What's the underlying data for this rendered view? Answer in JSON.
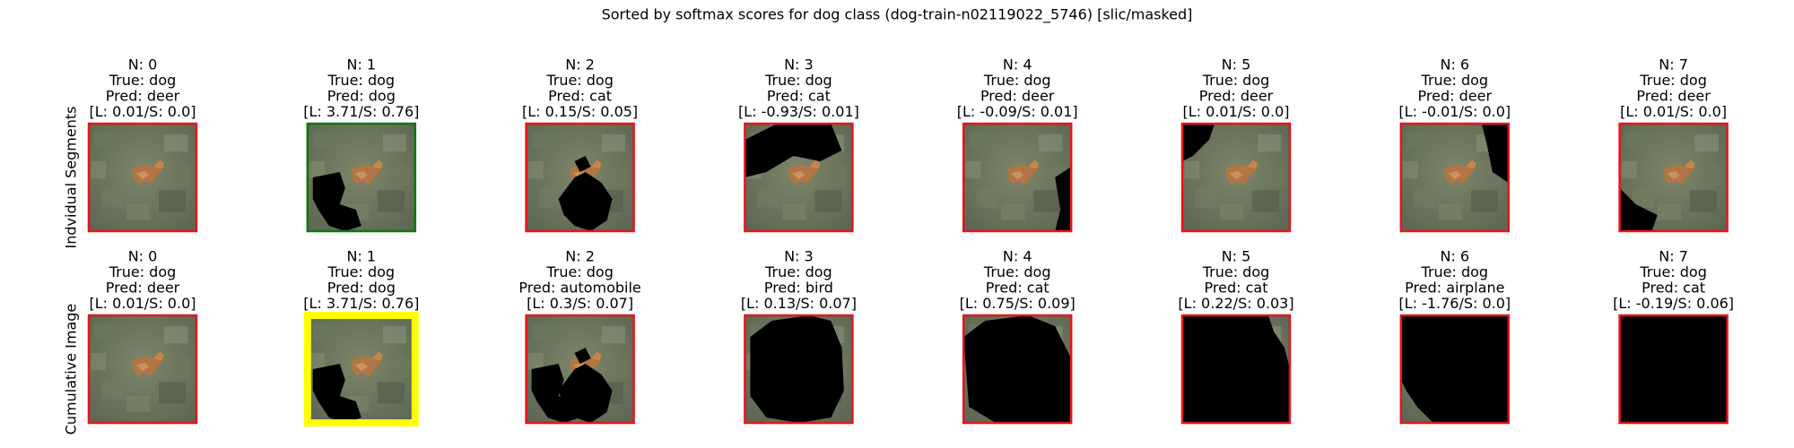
{
  "title": "Sorted by softmax scores for dog class (dog-train-n02119022_5746) [slic/masked]",
  "rows": [
    {
      "label": "Indvidual Segments",
      "panels": [
        {
          "n": "N: 0",
          "true": "True: dog",
          "pred": "Pred: deer",
          "score": "[L: 0.01/S: 0.0]",
          "border": "#e8141c"
        },
        {
          "n": "N: 1",
          "true": "True: dog",
          "pred": "Pred: dog",
          "score": "[L: 3.71/S: 0.76]",
          "border": "#0a7a0a"
        },
        {
          "n": "N: 2",
          "true": "True: dog",
          "pred": "Pred: cat",
          "score": "[L: 0.15/S: 0.05]",
          "border": "#e8141c"
        },
        {
          "n": "N: 3",
          "true": "True: dog",
          "pred": "Pred: cat",
          "score": "[L: -0.93/S: 0.01]",
          "border": "#e8141c"
        },
        {
          "n": "N: 4",
          "true": "True: dog",
          "pred": "Pred: deer",
          "score": "[L: -0.09/S: 0.01]",
          "border": "#e8141c"
        },
        {
          "n": "N: 5",
          "true": "True: dog",
          "pred": "Pred: deer",
          "score": "[L: 0.01/S: 0.0]",
          "border": "#e8141c"
        },
        {
          "n": "N: 6",
          "true": "True: dog",
          "pred": "Pred: deer",
          "score": "[L: -0.01/S: 0.0]",
          "border": "#e8141c"
        },
        {
          "n": "N: 7",
          "true": "True: dog",
          "pred": "Pred: deer",
          "score": "[L: 0.01/S: 0.0]",
          "border": "#e8141c"
        }
      ]
    },
    {
      "label": "Cumulative Image",
      "panels": [
        {
          "n": "N: 0",
          "true": "True: dog",
          "pred": "Pred: deer",
          "score": "[L: 0.01/S: 0.0]",
          "border": "#e8141c"
        },
        {
          "n": "N: 1",
          "true": "True: dog",
          "pred": "Pred: dog",
          "score": "[L: 3.71/S: 0.76]",
          "border": "#ffff00"
        },
        {
          "n": "N: 2",
          "true": "True: dog",
          "pred": "Pred: automobile",
          "score": "[L: 0.3/S: 0.07]",
          "border": "#e8141c"
        },
        {
          "n": "N: 3",
          "true": "True: dog",
          "pred": "Pred: bird",
          "score": "[L: 0.13/S: 0.07]",
          "border": "#e8141c"
        },
        {
          "n": "N: 4",
          "true": "True: dog",
          "pred": "Pred: cat",
          "score": "[L: 0.75/S: 0.09]",
          "border": "#e8141c"
        },
        {
          "n": "N: 5",
          "true": "True: dog",
          "pred": "Pred: cat",
          "score": "[L: 0.22/S: 0.03]",
          "border": "#e8141c"
        },
        {
          "n": "N: 6",
          "true": "True: dog",
          "pred": "Pred: airplane",
          "score": "[L: -1.76/S: 0.0]",
          "border": "#e8141c"
        },
        {
          "n": "N: 7",
          "true": "True: dog",
          "pred": "Pred: cat",
          "score": "[L: -0.19/S: 0.06]",
          "border": "#e8141c"
        }
      ]
    }
  ]
}
